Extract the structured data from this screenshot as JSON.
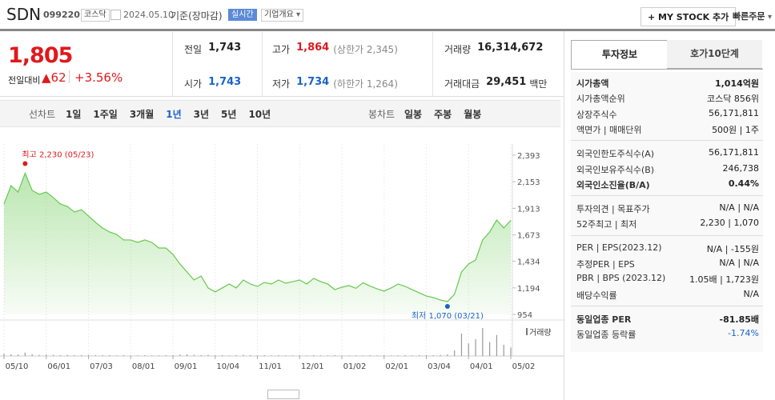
{
  "header": {
    "name": "SDN",
    "code": "099220",
    "market": "코스닥",
    "date": "2024.05.10",
    "basis": "기준(장마감)",
    "realtime": "실시간",
    "overview": "기업개요",
    "mystock": "MY STOCK 추가",
    "quick_order": "빠른주문"
  },
  "quote": {
    "price": "1,805",
    "change_label": "전일대비",
    "change": "62",
    "change_rate": "+3.56%",
    "stats": [
      {
        "label": "전일",
        "value": "1,743",
        "color": "#222"
      },
      {
        "label": "고가",
        "value": "1,864",
        "note": "(상한가 2,345)",
        "color": "#e0191d"
      },
      {
        "label": "거래량",
        "value": "16,314,672",
        "color": "#222"
      },
      {
        "label": "시가",
        "value": "1,743",
        "color": "#1a63c8"
      },
      {
        "label": "저가",
        "value": "1,734",
        "note": "(하한가 1,264)",
        "color": "#1a63c8"
      },
      {
        "label": "거래대금",
        "value": "29,451",
        "unit": "백만",
        "color": "#222"
      }
    ]
  },
  "chart_tabs": {
    "line_label": "선차트",
    "line": [
      "1일",
      "1주일",
      "3개월",
      "1년",
      "3년",
      "5년",
      "10년"
    ],
    "active": 3,
    "candle_label": "봉차트",
    "candle": [
      "일봉",
      "주봉",
      "월봉"
    ]
  },
  "chart_data": {
    "type": "line",
    "color": "#66c94f",
    "categories": [
      "05/10",
      null,
      null,
      null,
      null,
      null,
      "06/01",
      null,
      null,
      null,
      null,
      null,
      "07/03",
      null,
      null,
      null,
      null,
      null,
      "08/01",
      null,
      null,
      null,
      null,
      null,
      "09/01",
      null,
      null,
      null,
      null,
      null,
      "10/04",
      null,
      null,
      null,
      null,
      null,
      "11/01",
      null,
      null,
      null,
      null,
      null,
      "12/01",
      null,
      null,
      null,
      null,
      null,
      "01/02",
      null,
      null,
      null,
      null,
      null,
      "02/01",
      null,
      null,
      null,
      null,
      null,
      "03/04",
      null,
      null,
      null,
      null,
      null,
      "04/01",
      null,
      null,
      null,
      null,
      null,
      "05/02"
    ],
    "values": [
      1952,
      2118,
      2060,
      2230,
      2075,
      2039,
      2060,
      2010,
      1952,
      1930,
      1880,
      1900,
      1844,
      1786,
      1735,
      1699,
      1677,
      1627,
      1627,
      1605,
      1627,
      1605,
      1554,
      1554,
      1497,
      1410,
      1337,
      1265,
      1301,
      1193,
      1157,
      1193,
      1229,
      1193,
      1265,
      1229,
      1207,
      1243,
      1229,
      1265,
      1236,
      1250,
      1265,
      1229,
      1280,
      1250,
      1229,
      1178,
      1200,
      1215,
      1190,
      1240,
      1210,
      1185,
      1165,
      1193,
      1229,
      1207,
      1178,
      1149,
      1120,
      1106,
      1084,
      1070,
      1135,
      1337,
      1410,
      1446,
      1627,
      1699,
      1807,
      1735,
      1805
    ],
    "volume_label": "거래량",
    "volume": [
      8,
      6,
      5,
      12,
      6,
      4,
      5,
      4,
      3,
      4,
      3,
      3,
      4,
      3,
      3,
      3,
      2,
      3,
      2,
      2,
      3,
      2,
      2,
      3,
      3,
      5,
      6,
      4,
      3,
      4,
      3,
      3,
      2,
      3,
      4,
      3,
      2,
      3,
      2,
      3,
      2,
      2,
      3,
      2,
      3,
      2,
      2,
      3,
      2,
      2,
      2,
      2,
      3,
      2,
      3,
      2,
      2,
      3,
      2,
      3,
      4,
      3,
      4,
      6,
      20,
      80,
      45,
      60,
      100,
      50,
      75,
      40,
      30
    ],
    "ylim": [
      954,
      2393
    ],
    "yticks": [
      954,
      {
        "value": 1194,
        "label": "1,194"
      },
      {
        "value": 1434,
        "label": "1,434"
      },
      {
        "value": 1673,
        "label": "1,673"
      },
      {
        "value": 1913,
        "label": "1,913"
      },
      {
        "value": 2153,
        "label": "2,153"
      },
      {
        "value": 2393,
        "label": "2,393"
      }
    ],
    "annotations": [
      {
        "label": "최고 2,230 (05/23)",
        "value": 2230,
        "color": "#e0191d"
      },
      {
        "label": "최저 1,070 (03/21)",
        "value": 1070,
        "color": "#1a63c8"
      }
    ]
  },
  "sidebar": {
    "tabs": [
      "투자정보",
      "호가10단계"
    ],
    "groups": [
      [
        {
          "label": "시가총액",
          "value": "1,014억원",
          "style": "bold"
        },
        {
          "label": "시가총액순위",
          "value": "코스닥 856위"
        },
        {
          "label": "상장주식수",
          "value": "56,171,811"
        },
        {
          "label": "액면가 | 매매단위",
          "value": "500원 | 1주"
        }
      ],
      [
        {
          "label": "외국인한도주식수(A)",
          "value": "56,171,811"
        },
        {
          "label": "외국인보유주식수(B)",
          "value": "246,738"
        },
        {
          "label": "외국인소진율(B/A)",
          "value": "0.44%",
          "style": "bold"
        }
      ],
      [
        {
          "label": "투자의견 | 목표주가",
          "value": "N/A | N/A"
        },
        {
          "label": "52주최고 | 최저",
          "value": "2,230 | 1,070"
        }
      ],
      [
        {
          "label": "PER | EPS(2023.12)",
          "value": "N/A | -155원"
        },
        {
          "label": "추정PER | EPS",
          "value": "N/A | N/A"
        },
        {
          "label": "PBR | BPS (2023.12)",
          "value": "1.05배 | 1,723원"
        },
        {
          "label": "배당수익률",
          "value": "N/A"
        }
      ],
      [
        {
          "label": "동일업종 PER",
          "value": "-81.85배",
          "style": "bold"
        },
        {
          "label": "동일업종 등락률",
          "value": "-1.74%",
          "style": "blue"
        }
      ]
    ]
  }
}
